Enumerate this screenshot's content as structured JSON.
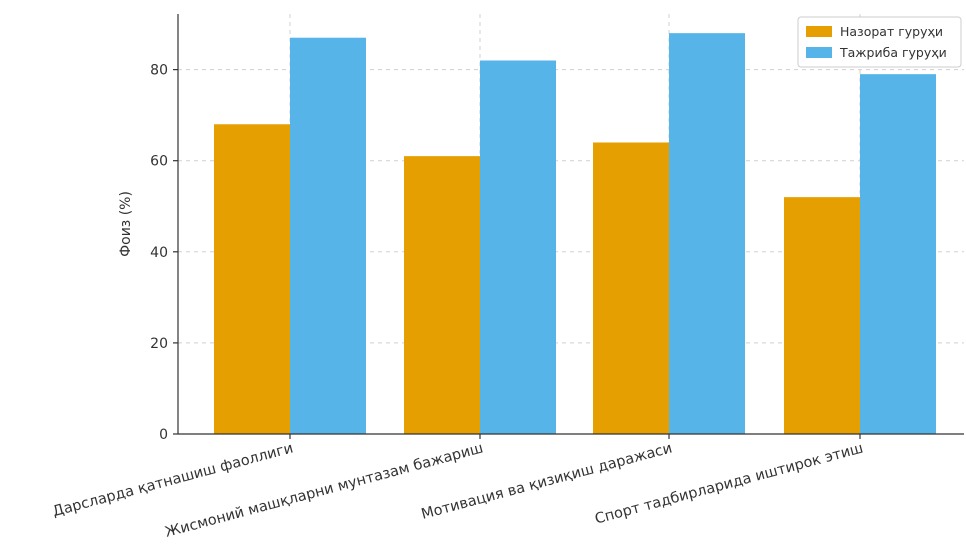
{
  "chart_data": {
    "type": "bar",
    "title": "",
    "xlabel": "",
    "ylabel": "Фоиз (%)",
    "ylim": [
      0,
      90
    ],
    "yticks": [
      0,
      20,
      40,
      60,
      80
    ],
    "grid": true,
    "legend_position": "top-right",
    "categories": [
      "Дарсларда қатнашиш фаоллиги",
      "Жисмоний машқларни мунтазам бажариш",
      "Мотивация ва қизиқиш даражаси",
      "Спорт тадбирларида иштирок этиш"
    ],
    "series": [
      {
        "name": "Назорат гуруҳи",
        "color": "#E69F00",
        "values": [
          68,
          61,
          64,
          52
        ]
      },
      {
        "name": "Тажриба гуруҳи",
        "color": "#56B4E9",
        "values": [
          87,
          82,
          88,
          79
        ]
      }
    ]
  }
}
